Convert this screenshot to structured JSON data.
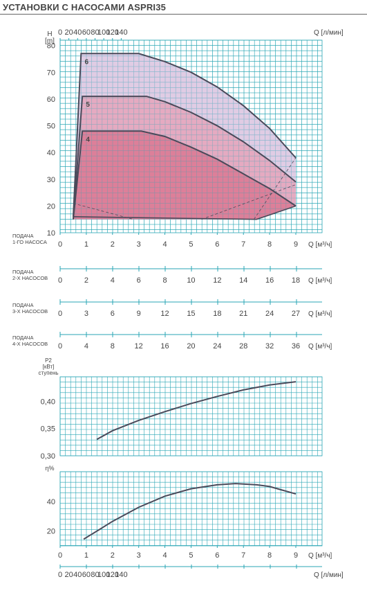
{
  "page": {
    "title": "УСТАНОВКИ С НАСОСАМИ ASPRI35"
  },
  "colors": {
    "grid": "#29a6b4",
    "curve": "#4a4a5a",
    "fill_6": "#ddc7e1",
    "fill_5": "#e6a6bc",
    "fill_4": "#dc7a95",
    "text": "#444444"
  },
  "chart_data": [
    {
      "type": "area",
      "name": "head",
      "ylabel": "H\n[m]",
      "xlabel_top": "Q [л/мин]",
      "xlabel_bottom": "Q [м³/ч]",
      "x_m3h_ticks": [
        0,
        1,
        2,
        3,
        4,
        5,
        6,
        7,
        8,
        9
      ],
      "x_lmin_ticks": [
        0,
        20,
        40,
        60,
        80,
        100,
        120,
        140
      ],
      "y_ticks": [
        10,
        20,
        30,
        40,
        50,
        60,
        70,
        80
      ],
      "ylim": [
        10,
        82
      ],
      "series": [
        {
          "name": "6",
          "points": [
            [
              0.5,
              16
            ],
            [
              0.8,
              77
            ],
            [
              3.0,
              77
            ],
            [
              4.0,
              74
            ],
            [
              5.0,
              70
            ],
            [
              6.0,
              64.5
            ],
            [
              7.0,
              57.5
            ],
            [
              8.0,
              49
            ],
            [
              9.0,
              38
            ]
          ]
        },
        {
          "name": "5",
          "points": [
            [
              0.5,
              15
            ],
            [
              0.85,
              61
            ],
            [
              3.3,
              61
            ],
            [
              4.0,
              59
            ],
            [
              5.0,
              55
            ],
            [
              6.0,
              50
            ],
            [
              7.0,
              44
            ],
            [
              8.0,
              37
            ],
            [
              9.0,
              29
            ]
          ]
        },
        {
          "name": "4",
          "points": [
            [
              0.5,
              15
            ],
            [
              0.85,
              48
            ],
            [
              3.1,
              48
            ],
            [
              4.0,
              46
            ],
            [
              5.0,
              42
            ],
            [
              6.0,
              37.5
            ],
            [
              7.0,
              32
            ],
            [
              8.0,
              26.5
            ],
            [
              9.0,
              20
            ]
          ]
        }
      ],
      "series_labels": [
        "6",
        "5",
        "4"
      ],
      "lower_limit": [
        [
          0.5,
          16
        ],
        [
          7.5,
          15
        ],
        [
          9.0,
          20
        ]
      ],
      "npsh_lines": [
        [
          [
            0.5,
            21
          ],
          [
            2.8,
            15
          ]
        ],
        [
          [
            5.4,
            15
          ],
          [
            9.0,
            28
          ]
        ],
        [
          [
            7.4,
            15
          ],
          [
            9.0,
            38
          ]
        ]
      ]
    },
    {
      "type": "line",
      "name": "flow_scales",
      "scales": [
        {
          "label": "ПОДАЧА\n1-ГО НАСОСА",
          "ticks": [
            0,
            1,
            2,
            3,
            4,
            5,
            6,
            7,
            8,
            9
          ],
          "unit": "Q [м³/ч]"
        },
        {
          "label": "ПОДАЧА\n2-Х НАСОСОВ",
          "ticks": [
            0,
            2,
            4,
            6,
            8,
            10,
            12,
            14,
            16,
            18
          ],
          "unit": "Q [м³/ч]"
        },
        {
          "label": "ПОДАЧА\n3-Х НАСОСОВ",
          "ticks": [
            0,
            3,
            6,
            9,
            12,
            15,
            18,
            21,
            24,
            27
          ],
          "unit": "Q [м³/ч]"
        },
        {
          "label": "ПОДАЧА\n4-Х НАСОСОВ",
          "ticks": [
            0,
            4,
            8,
            12,
            16,
            20,
            24,
            28,
            32,
            36
          ],
          "unit": "Q [м³/ч]"
        }
      ]
    },
    {
      "type": "line",
      "name": "power",
      "ylabel": "P2\n[кВт]\nступень",
      "y_tick_labels": [
        "0,30",
        "0,35",
        "0,40"
      ],
      "y_ticks": [
        0.3,
        0.35,
        0.4
      ],
      "ylim": [
        0.3,
        0.445
      ],
      "series": [
        {
          "points": [
            [
              1.4,
              0.33
            ],
            [
              2.0,
              0.346
            ],
            [
              3.0,
              0.365
            ],
            [
              4.0,
              0.381
            ],
            [
              5.0,
              0.396
            ],
            [
              6.0,
              0.409
            ],
            [
              7.0,
              0.421
            ],
            [
              8.0,
              0.43
            ],
            [
              9.0,
              0.436
            ]
          ]
        }
      ]
    },
    {
      "type": "line",
      "name": "efficiency",
      "ylabel": "η%",
      "y_ticks": [
        20,
        40
      ],
      "ylim": [
        10,
        60
      ],
      "xlabel_bottom": "Q [м³/ч]",
      "xlabel_lmin": "Q [л/мин]",
      "x_m3h_ticks": [
        0,
        1,
        2,
        3,
        4,
        5,
        6,
        7,
        8,
        9
      ],
      "x_lmin_ticks": [
        0,
        20,
        40,
        60,
        80,
        100,
        120,
        140
      ],
      "series": [
        {
          "points": [
            [
              0.9,
              14.5
            ],
            [
              1.5,
              21
            ],
            [
              2.0,
              26.5
            ],
            [
              3.0,
              36
            ],
            [
              4.0,
              43.5
            ],
            [
              5.0,
              48.5
            ],
            [
              6.0,
              51.2
            ],
            [
              6.7,
              52
            ],
            [
              7.5,
              51.2
            ],
            [
              8.0,
              50
            ],
            [
              8.5,
              47.5
            ],
            [
              9.0,
              45
            ]
          ]
        }
      ]
    }
  ]
}
